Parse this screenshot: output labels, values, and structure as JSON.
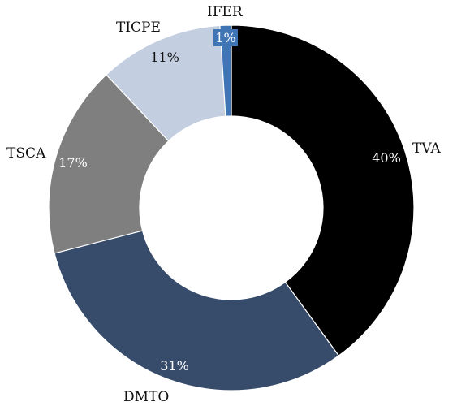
{
  "chart_data": {
    "type": "pie",
    "subtype": "donut",
    "slices": [
      {
        "name": "TVA",
        "value": 40,
        "label": "40%",
        "color": "#000000",
        "label_color": "#ffffff"
      },
      {
        "name": "DMTO",
        "value": 31,
        "label": "31%",
        "color": "#374b6b",
        "label_color": "#ffffff"
      },
      {
        "name": "TSCA",
        "value": 17,
        "label": "17%",
        "color": "#7f7f7f",
        "label_color": "#ffffff"
      },
      {
        "name": "TICPE",
        "value": 11,
        "label": "11%",
        "color": "#c3cee0",
        "label_color": "#111111"
      },
      {
        "name": "IFER",
        "value": 1,
        "label": "1%",
        "color": "#3f74b5",
        "label_color": "#ffffff"
      }
    ],
    "start": "12 o'clock",
    "direction": "clockwise"
  }
}
